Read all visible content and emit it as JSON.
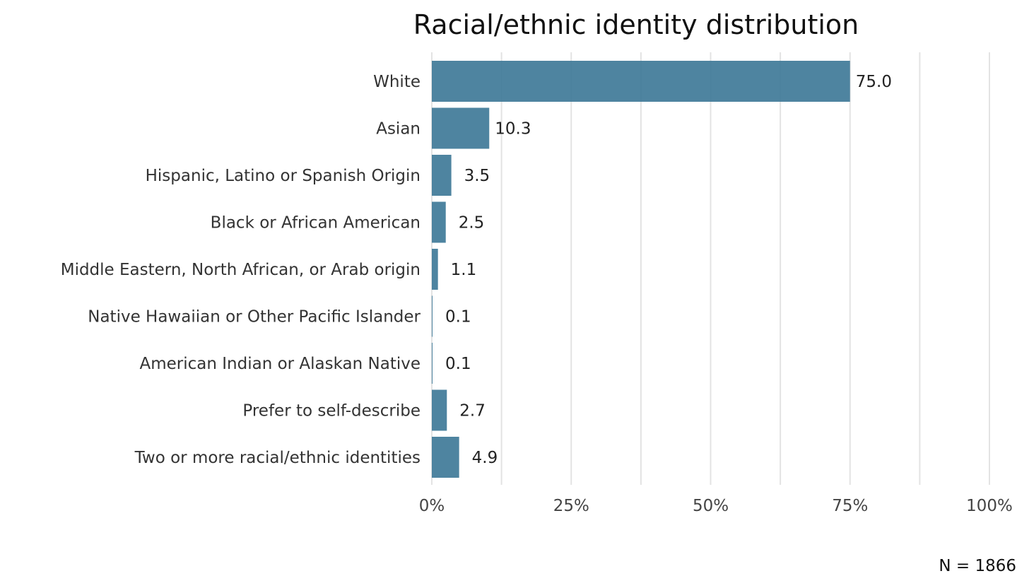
{
  "chart_data": {
    "type": "bar",
    "orientation": "horizontal",
    "title": "Racial/ethnic identity distribution",
    "categories": [
      "White",
      "Asian",
      "Hispanic, Latino or Spanish Origin",
      "Black or African American",
      "Middle Eastern, North African, or Arab origin",
      "Native Hawaiian or Other Pacific Islander",
      "American Indian or Alaskan Native",
      "Prefer to self-describe",
      "Two or more racial/ethnic identities"
    ],
    "values": [
      75.0,
      10.3,
      3.5,
      2.5,
      1.1,
      0.1,
      0.1,
      2.7,
      4.9
    ],
    "value_labels": [
      "75.0",
      "10.3",
      "3.5",
      "2.5",
      "1.1",
      "0.1",
      "0.1",
      "2.7",
      "4.9"
    ],
    "xlim": [
      0,
      100
    ],
    "x_ticks": [
      0,
      25,
      50,
      75,
      100
    ],
    "x_tick_labels": [
      "0%",
      "25%",
      "50%",
      "75%",
      "100%"
    ],
    "xlabel": "",
    "ylabel": "",
    "grid": "vertical",
    "legend": "none",
    "bar_color": "#3f7a98",
    "note": "N = 1866"
  }
}
